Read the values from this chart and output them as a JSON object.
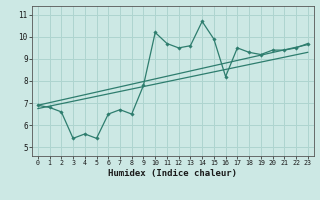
{
  "xlabel": "Humidex (Indice chaleur)",
  "xlim": [
    -0.5,
    23.5
  ],
  "ylim": [
    4.6,
    11.4
  ],
  "xticks": [
    0,
    1,
    2,
    3,
    4,
    5,
    6,
    7,
    8,
    9,
    10,
    11,
    12,
    13,
    14,
    15,
    16,
    17,
    18,
    19,
    20,
    21,
    22,
    23
  ],
  "yticks": [
    5,
    6,
    7,
    8,
    9,
    10,
    11
  ],
  "bg_color": "#cce8e4",
  "grid_color": "#aed4cf",
  "line_color": "#2e7d6e",
  "data_x": [
    0,
    1,
    2,
    3,
    4,
    5,
    6,
    7,
    8,
    9,
    10,
    11,
    12,
    13,
    14,
    15,
    16,
    17,
    18,
    19,
    20,
    21,
    22,
    23
  ],
  "data_y": [
    6.9,
    6.8,
    6.6,
    5.4,
    5.6,
    5.4,
    6.5,
    6.7,
    6.5,
    7.8,
    10.2,
    9.7,
    9.5,
    9.6,
    10.7,
    9.9,
    8.2,
    9.5,
    9.3,
    9.2,
    9.4,
    9.4,
    9.5,
    9.7
  ],
  "trend_x": [
    0,
    23
  ],
  "trend_y": [
    6.9,
    9.65
  ],
  "trend2_x": [
    0,
    23
  ],
  "trend2_y": [
    7.0,
    9.7
  ]
}
